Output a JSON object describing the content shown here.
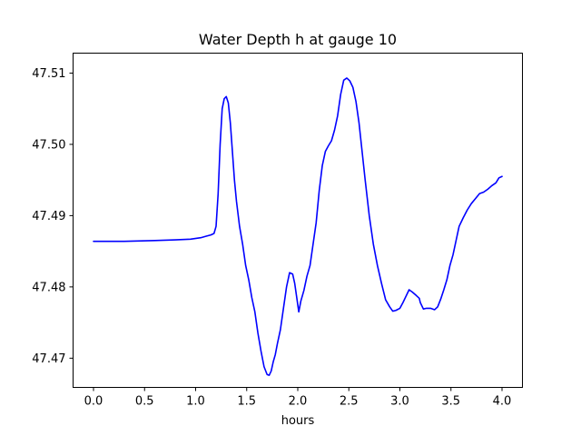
{
  "chart_data": {
    "type": "line",
    "title": "Water Depth h at gauge 10",
    "xlabel": "hours",
    "ylabel": "",
    "xlim": [
      -0.2,
      4.2
    ],
    "ylim": [
      47.4659,
      47.5128
    ],
    "grid": false,
    "legend": "none",
    "xticks": [
      0.0,
      0.5,
      1.0,
      1.5,
      2.0,
      2.5,
      3.0,
      3.5,
      4.0
    ],
    "xtick_labels": [
      "0.0",
      "0.5",
      "1.0",
      "1.5",
      "2.0",
      "2.5",
      "3.0",
      "3.5",
      "4.0"
    ],
    "yticks": [
      47.47,
      47.48,
      47.49,
      47.5,
      47.51
    ],
    "ytick_labels": [
      "47.47",
      "47.48",
      "47.49",
      "47.50",
      "47.51"
    ],
    "series": [
      {
        "color": "#0000ff",
        "x": [
          0.0,
          0.3,
          0.6,
          0.8,
          0.95,
          1.05,
          1.1,
          1.15,
          1.18,
          1.2,
          1.22,
          1.24,
          1.26,
          1.28,
          1.3,
          1.32,
          1.34,
          1.36,
          1.38,
          1.4,
          1.43,
          1.46,
          1.49,
          1.52,
          1.55,
          1.58,
          1.61,
          1.64,
          1.67,
          1.7,
          1.72,
          1.74,
          1.76,
          1.78,
          1.8,
          1.83,
          1.86,
          1.89,
          1.92,
          1.95,
          1.97,
          1.99,
          2.01,
          2.03,
          2.06,
          2.09,
          2.12,
          2.15,
          2.18,
          2.21,
          2.24,
          2.27,
          2.3,
          2.33,
          2.36,
          2.39,
          2.42,
          2.45,
          2.48,
          2.51,
          2.54,
          2.57,
          2.6,
          2.63,
          2.66,
          2.7,
          2.74,
          2.78,
          2.82,
          2.86,
          2.9,
          2.93,
          2.96,
          3.0,
          3.03,
          3.06,
          3.09,
          3.12,
          3.16,
          3.19,
          3.2,
          3.23,
          3.26,
          3.3,
          3.34,
          3.37,
          3.4,
          3.43,
          3.46,
          3.49,
          3.52,
          3.55,
          3.58,
          3.62,
          3.66,
          3.7,
          3.74,
          3.78,
          3.82,
          3.86,
          3.9,
          3.94,
          3.97,
          4.0
        ],
        "y": [
          47.4864,
          47.4864,
          47.4865,
          47.4866,
          47.4867,
          47.4869,
          47.4871,
          47.4873,
          47.4875,
          47.4885,
          47.493,
          47.5,
          47.505,
          47.5064,
          47.5067,
          47.5058,
          47.503,
          47.499,
          47.495,
          47.492,
          47.4885,
          47.486,
          47.483,
          47.481,
          47.4785,
          47.4765,
          47.4735,
          47.471,
          47.4688,
          47.4677,
          47.4676,
          47.4682,
          47.4695,
          47.4705,
          47.472,
          47.474,
          47.477,
          47.48,
          47.482,
          47.4818,
          47.4805,
          47.4785,
          47.4765,
          47.478,
          47.4795,
          47.4815,
          47.483,
          47.486,
          47.489,
          47.4935,
          47.497,
          47.499,
          47.4998,
          47.5005,
          47.502,
          47.504,
          47.507,
          47.509,
          47.5093,
          47.5089,
          47.508,
          47.506,
          47.503,
          47.499,
          47.495,
          47.49,
          47.486,
          47.483,
          47.4805,
          47.4782,
          47.4772,
          47.4766,
          47.4767,
          47.477,
          47.4778,
          47.4787,
          47.4796,
          47.4793,
          47.4788,
          47.4784,
          47.4778,
          47.4769,
          47.477,
          47.477,
          47.4768,
          47.4772,
          47.4783,
          47.4796,
          47.481,
          47.483,
          47.4845,
          47.4865,
          47.4885,
          47.4897,
          47.4908,
          47.4917,
          47.4924,
          47.4931,
          47.4933,
          47.4937,
          47.4942,
          47.4946,
          47.4953,
          47.4955
        ]
      }
    ]
  }
}
